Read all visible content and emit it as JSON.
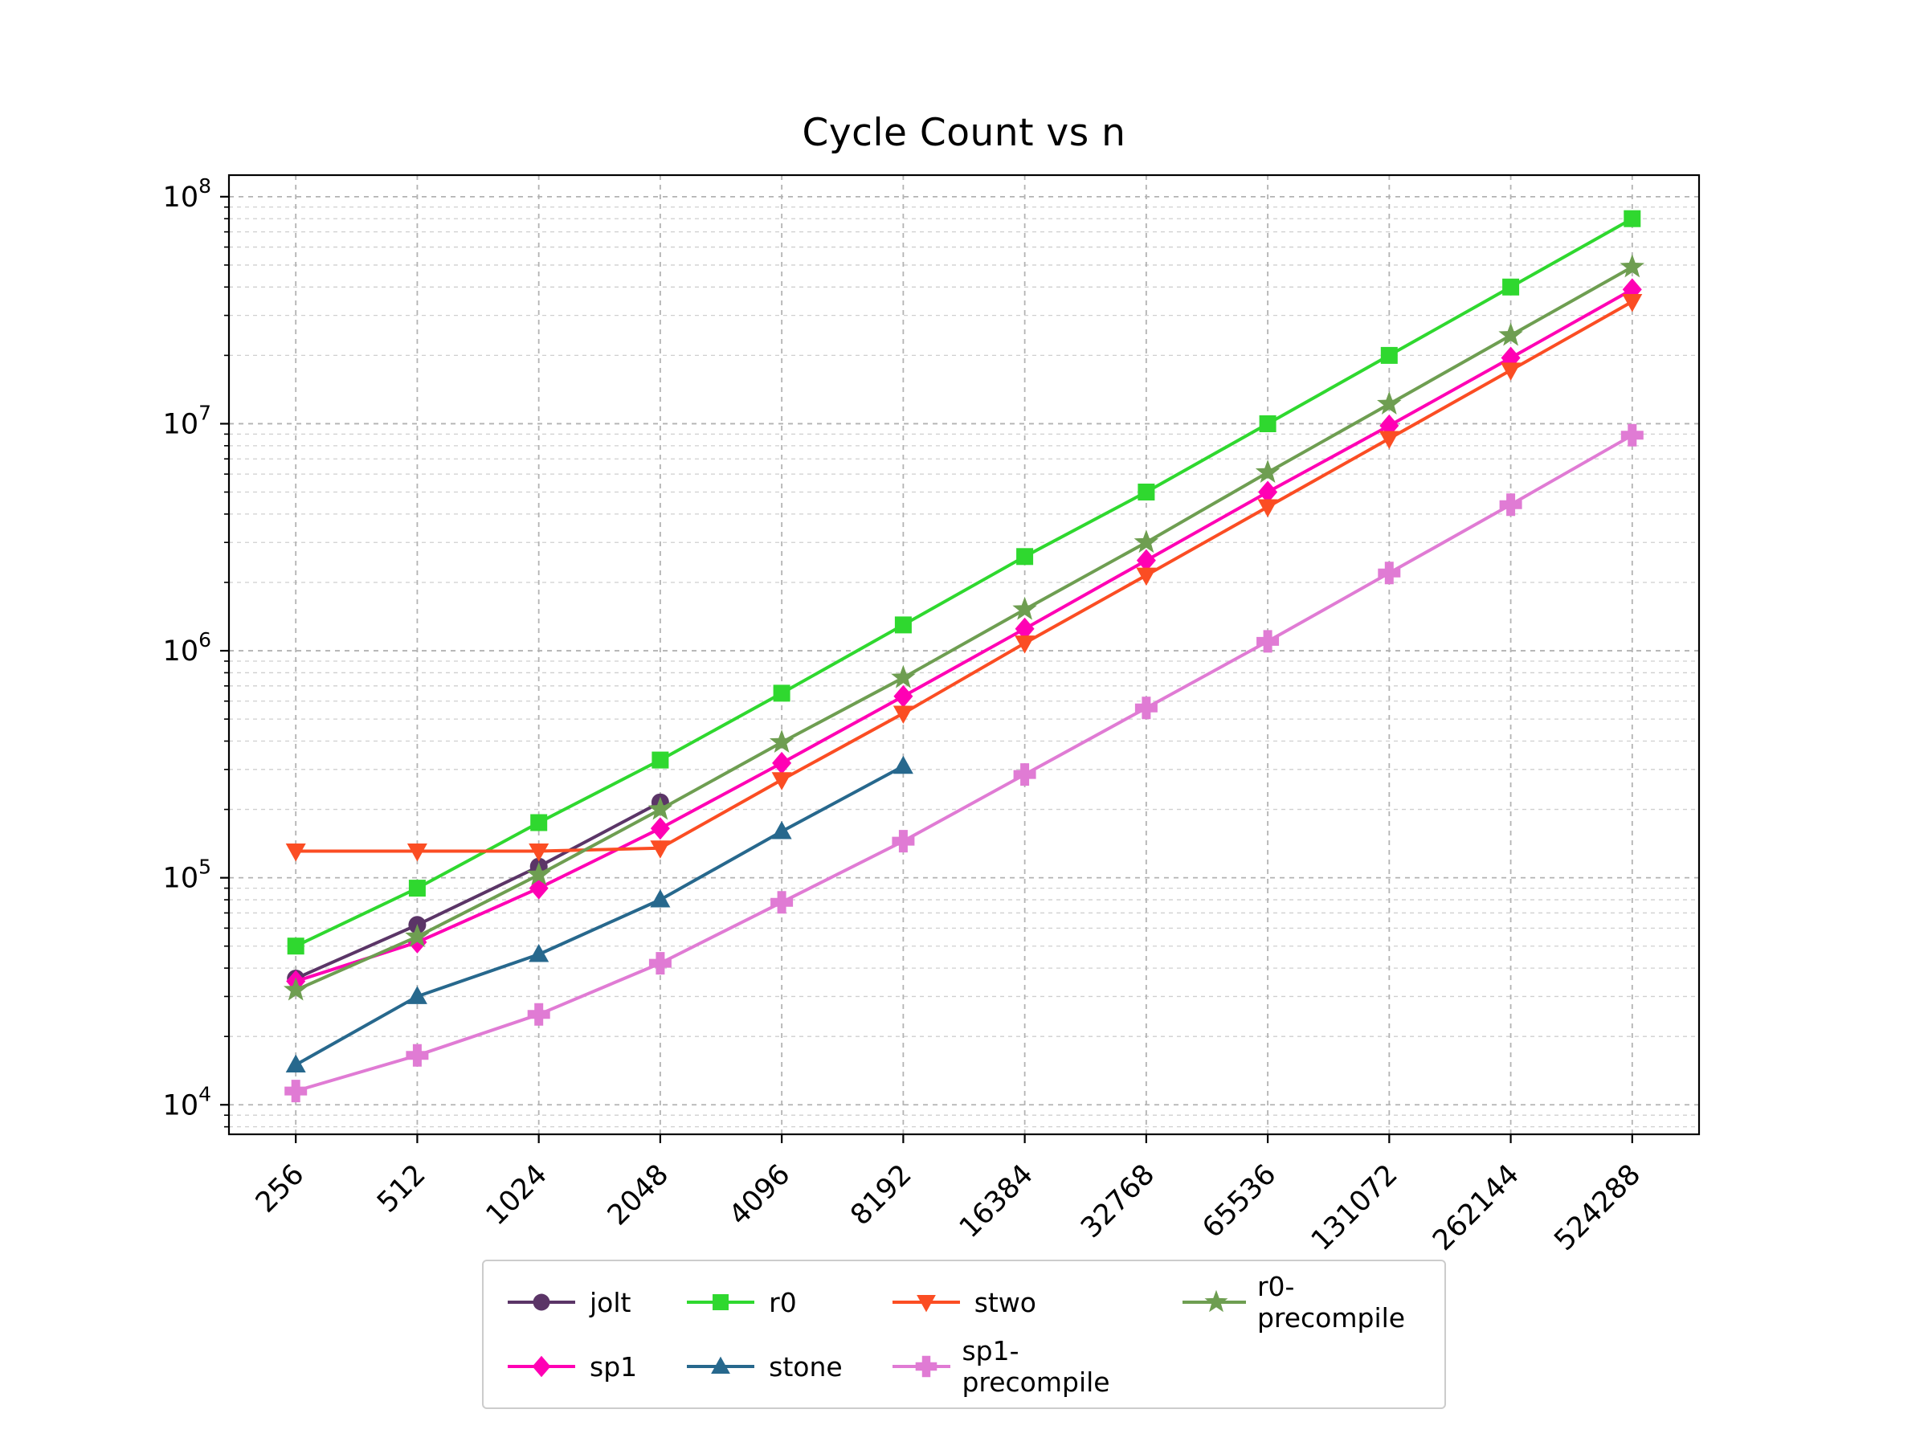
{
  "chart_data": {
    "type": "line",
    "title": "Cycle Count vs n",
    "x_scale": "log2",
    "y_scale": "log10",
    "grid": "dashed",
    "legend_position": "bottom-center",
    "x_ticks": [
      256,
      512,
      1024,
      2048,
      4096,
      8192,
      16384,
      32768,
      65536,
      131072,
      262144,
      524288
    ],
    "y_ticks": [
      "10^4",
      "10^5",
      "10^6",
      "10^7",
      "10^8"
    ],
    "y_tick_exponents": [
      4,
      5,
      6,
      7,
      8
    ],
    "series": [
      {
        "name": "jolt",
        "color": "#5b3567",
        "marker": "circle",
        "x": [
          256,
          512,
          1024,
          2048
        ],
        "y": [
          36000,
          62000,
          112000,
          215000
        ]
      },
      {
        "name": "sp1",
        "color": "#ff00b4",
        "marker": "diamond",
        "x": [
          256,
          512,
          1024,
          2048,
          4096,
          8192,
          16384,
          32768,
          65536,
          131072,
          262144,
          524288
        ],
        "y": [
          35000,
          52000,
          90000,
          165000,
          320000,
          630000,
          1250000,
          2500000,
          5000000,
          9800000,
          19500000,
          39000000
        ]
      },
      {
        "name": "r0",
        "color": "#2fd82f",
        "marker": "square",
        "x": [
          256,
          512,
          1024,
          2048,
          4096,
          8192,
          16384,
          32768,
          65536,
          131072,
          262144,
          524288
        ],
        "y": [
          50000,
          90000,
          175000,
          330000,
          650000,
          1300000,
          2600000,
          5000000,
          10000000,
          20000000,
          40000000,
          80000000
        ]
      },
      {
        "name": "stone",
        "color": "#27688d",
        "marker": "triangle-up",
        "x": [
          256,
          512,
          1024,
          2048,
          4096,
          8192
        ],
        "y": [
          15000,
          30000,
          46000,
          80000,
          160000,
          310000
        ]
      },
      {
        "name": "stwo",
        "color": "#fb4d23",
        "marker": "triangle-down",
        "x": [
          256,
          512,
          1024,
          2048,
          4096,
          8192,
          16384,
          32768,
          65536,
          131072,
          262144,
          524288
        ],
        "y": [
          131000,
          131000,
          131000,
          135000,
          270000,
          530000,
          1080000,
          2150000,
          4300000,
          8600000,
          17200000,
          34500000
        ]
      },
      {
        "name": "sp1-precompile",
        "color": "#e07bd4",
        "marker": "plus",
        "x": [
          256,
          512,
          1024,
          2048,
          4096,
          8192,
          16384,
          32768,
          65536,
          131072,
          262144,
          524288
        ],
        "y": [
          11500,
          16500,
          25000,
          42000,
          78000,
          145000,
          285000,
          560000,
          1100000,
          2200000,
          4400000,
          8900000
        ]
      },
      {
        "name": "r0-precompile",
        "color": "#6e9e51",
        "marker": "star",
        "x": [
          256,
          512,
          1024,
          2048,
          4096,
          8192,
          16384,
          32768,
          65536,
          131072,
          262144,
          524288
        ],
        "y": [
          32000,
          55000,
          103000,
          200000,
          395000,
          760000,
          1520000,
          3000000,
          6100000,
          12200000,
          24500000,
          49000000
        ]
      }
    ],
    "legend_order": [
      "jolt",
      "sp1",
      "r0",
      "stone",
      "stwo",
      "sp1-precompile",
      "r0-precompile"
    ]
  }
}
